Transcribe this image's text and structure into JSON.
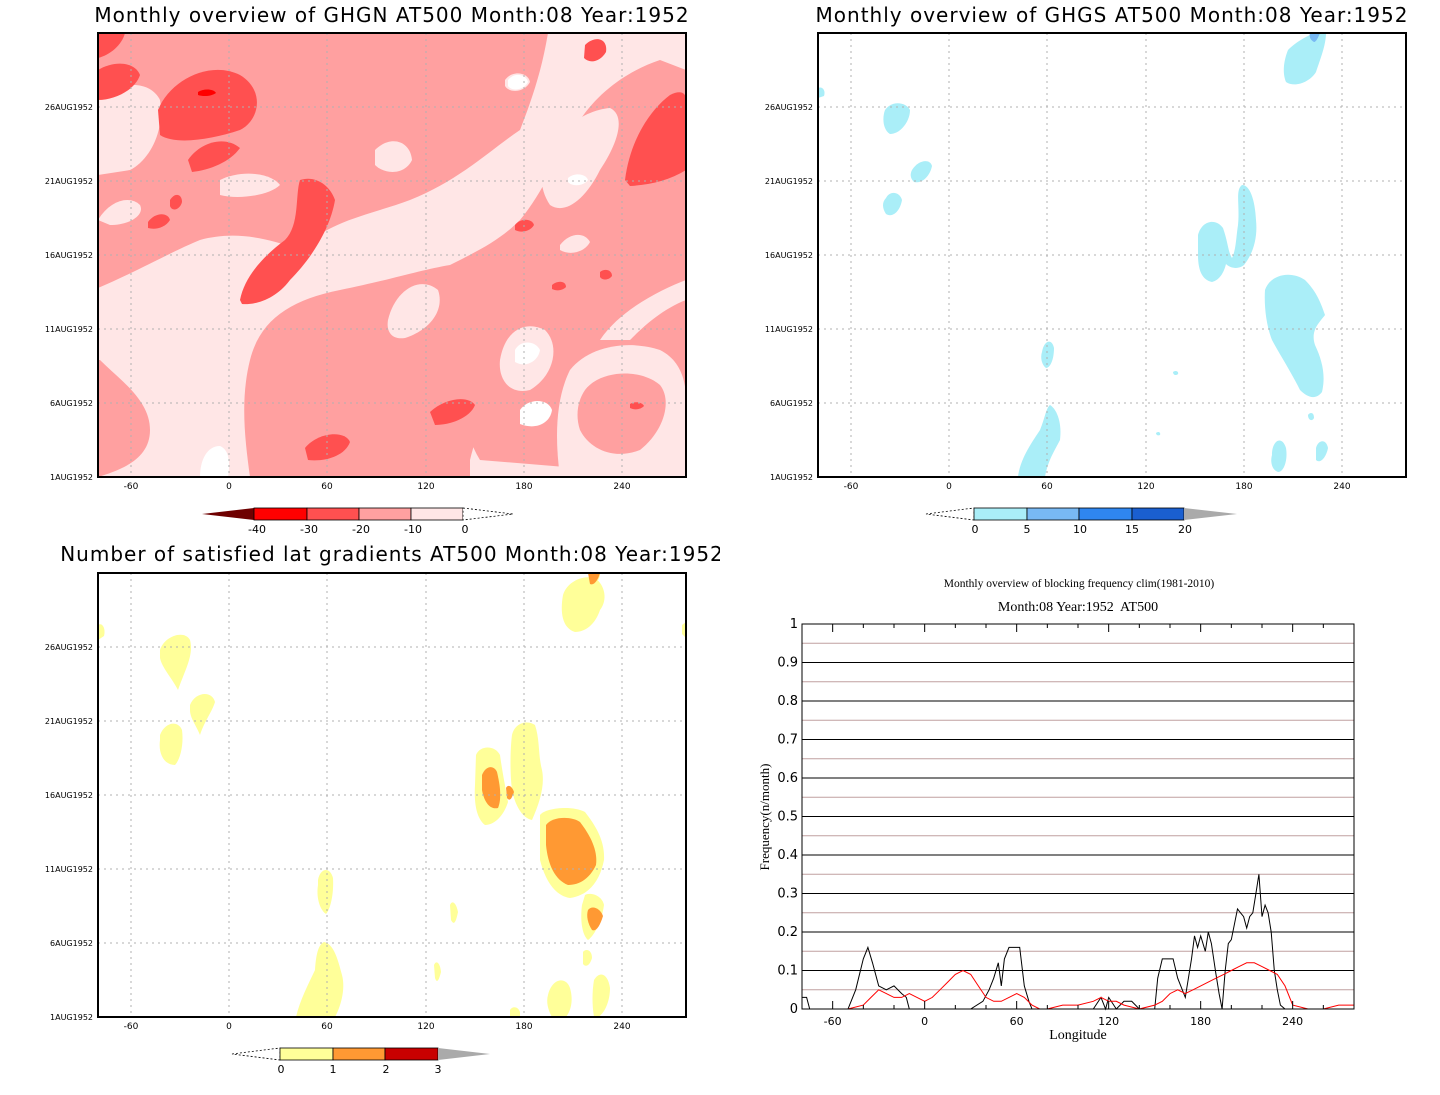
{
  "panels": {
    "ghgn": {
      "title": "Monthly overview of GHGN AT500 Month:08 Year:1952",
      "colorbar_labels": [
        "-40",
        "-30",
        "-20",
        "-10",
        "0"
      ],
      "colorbar_colors": [
        "#ff0000",
        "#ff5050",
        "#ffa0a0",
        "#ffe6e6"
      ],
      "colorbar_below_color": "#6e0000"
    },
    "ghgs": {
      "title": "Monthly overview of GHGS AT500 Month:08 Year:1952",
      "colorbar_labels": [
        "0",
        "5",
        "10",
        "15",
        "20"
      ],
      "colorbar_colors": [
        "#aaeef8",
        "#78b9f4",
        "#2f86f0",
        "#1a5fd0"
      ],
      "colorbar_above_color": "#aaaaaa"
    },
    "lat_gradients": {
      "title": "Number of satisfied lat gradients AT500 Month:08 Year:1952",
      "colorbar_labels": [
        "0",
        "1",
        "2",
        "3"
      ],
      "colorbar_colors": [
        "#ffff99",
        "#ff9933",
        "#c80000"
      ],
      "colorbar_above_color": "#aaaaaa"
    },
    "frequency": {
      "title": "Monthly overview of blocking frequency clim(1981-2010)",
      "subtitle": "Month:08 Year:1952  AT500"
    }
  },
  "hovmoller_axes": {
    "x_ticks": [
      "-60",
      "0",
      "60",
      "120",
      "180",
      "240"
    ],
    "y_ticks": [
      "1AUG1952",
      "6AUG1952",
      "11AUG1952",
      "16AUG1952",
      "21AUG1952",
      "26AUG1952"
    ]
  },
  "chart_data": [
    {
      "type": "heatmap",
      "title": "Monthly overview of GHGN AT500 Month:08 Year:1952",
      "x_ticks": [
        -60,
        0,
        60,
        120,
        180,
        240
      ],
      "xlim": [
        -80,
        280
      ],
      "y_ticks": [
        "1AUG1952",
        "6AUG1952",
        "11AUG1952",
        "16AUG1952",
        "21AUG1952",
        "26AUG1952"
      ],
      "colorbar_levels": [
        -40,
        -30,
        -20,
        -10,
        0
      ],
      "dominant_category": "-20 to -10",
      "grid": true
    },
    {
      "type": "heatmap",
      "title": "Monthly overview of GHGS AT500 Month:08 Year:1952",
      "x_ticks": [
        -60,
        0,
        60,
        120,
        180,
        240
      ],
      "xlim": [
        -80,
        280
      ],
      "y_ticks": [
        "1AUG1952",
        "6AUG1952",
        "11AUG1952",
        "16AUG1952",
        "21AUG1952",
        "26AUG1952"
      ],
      "colorbar_levels": [
        0,
        5,
        10,
        15,
        20
      ],
      "grid": true
    },
    {
      "type": "heatmap",
      "title": "Number of satisfied lat gradients AT500 Month:08 Year:1952",
      "x_ticks": [
        -60,
        0,
        60,
        120,
        180,
        240
      ],
      "xlim": [
        -80,
        280
      ],
      "y_ticks": [
        "1AUG1952",
        "6AUG1952",
        "11AUG1952",
        "16AUG1952",
        "21AUG1952",
        "26AUG1952"
      ],
      "colorbar_levels": [
        0,
        1,
        2,
        3
      ],
      "grid": true
    },
    {
      "type": "line",
      "title": "Monthly overview of blocking frequency clim(1981-2010)",
      "subtitle": "Month:08 Year:1952  AT500",
      "xlabel": "Longitude",
      "ylabel": "Frequency(n/month)",
      "xlim": [
        -80,
        280
      ],
      "ylim": [
        0,
        1
      ],
      "x_ticks": [
        -60,
        0,
        60,
        120,
        180,
        240
      ],
      "y_ticks": [
        "0",
        "0.1",
        "0.2",
        "0.3",
        "0.4",
        "0.5",
        "0.6",
        "0.7",
        "0.8",
        "0.9",
        "1"
      ],
      "grid": true,
      "series": [
        {
          "color": "#000000",
          "x": [
            -80,
            -77,
            -75,
            -50,
            -45,
            -40,
            -37,
            -34,
            -30,
            -25,
            -20,
            -15,
            -12,
            -10,
            -5,
            0,
            5,
            10,
            20,
            30,
            38,
            42,
            45,
            48,
            50,
            52,
            55,
            58,
            62,
            65,
            68,
            70,
            75,
            80,
            90,
            100,
            110,
            115,
            118,
            120,
            125,
            130,
            135,
            140,
            150,
            152,
            155,
            158,
            162,
            165,
            170,
            174,
            176,
            178,
            180,
            183,
            185,
            187,
            190,
            192,
            194,
            196,
            198,
            200,
            202,
            204,
            206,
            208,
            210,
            212,
            214,
            216,
            218,
            220,
            222,
            224,
            226,
            228,
            230,
            232,
            235,
            240,
            280
          ],
          "y": [
            0.03,
            0.03,
            0,
            0,
            0.05,
            0.13,
            0.16,
            0.12,
            0.06,
            0.05,
            0.06,
            0.04,
            0.03,
            0,
            0,
            0,
            0,
            0,
            0,
            0,
            0.02,
            0.05,
            0.08,
            0.12,
            0.06,
            0.13,
            0.16,
            0.16,
            0.16,
            0.06,
            0.02,
            0,
            0,
            0,
            0,
            0,
            0,
            0.03,
            0,
            0.03,
            0,
            0.02,
            0.02,
            0,
            0,
            0.08,
            0.13,
            0.13,
            0.13,
            0.08,
            0.03,
            0.13,
            0.19,
            0.16,
            0.19,
            0.15,
            0.2,
            0.17,
            0.09,
            0.04,
            0,
            0.1,
            0.17,
            0.18,
            0.22,
            0.26,
            0.25,
            0.24,
            0.21,
            0.24,
            0.25,
            0.3,
            0.35,
            0.24,
            0.27,
            0.25,
            0.2,
            0.1,
            0.05,
            0.01,
            0,
            0,
            0
          ]
        },
        {
          "color": "#ff0000",
          "x": [
            -80,
            -50,
            -40,
            -35,
            -30,
            -25,
            -20,
            -15,
            -10,
            -5,
            0,
            5,
            10,
            15,
            20,
            25,
            30,
            35,
            40,
            45,
            50,
            55,
            60,
            65,
            70,
            75,
            80,
            90,
            100,
            110,
            115,
            120,
            125,
            130,
            140,
            150,
            155,
            160,
            165,
            170,
            175,
            180,
            185,
            190,
            195,
            200,
            205,
            210,
            215,
            220,
            225,
            230,
            235,
            240,
            250,
            260,
            270,
            280
          ],
          "y": [
            0,
            0,
            0.01,
            0.03,
            0.05,
            0.04,
            0.03,
            0.03,
            0.04,
            0.03,
            0.02,
            0.03,
            0.05,
            0.07,
            0.09,
            0.1,
            0.09,
            0.06,
            0.03,
            0.02,
            0.02,
            0.03,
            0.04,
            0.03,
            0.01,
            0,
            0,
            0.01,
            0.01,
            0.02,
            0.03,
            0.02,
            0.02,
            0.01,
            0,
            0.01,
            0.02,
            0.04,
            0.05,
            0.04,
            0.05,
            0.06,
            0.07,
            0.08,
            0.09,
            0.1,
            0.11,
            0.12,
            0.12,
            0.11,
            0.1,
            0.09,
            0.06,
            0.01,
            0,
            0,
            0.01,
            0.01
          ]
        },
        {
          "color": "#c0a0a0",
          "role": "reference-lines",
          "y_values": [
            0.05,
            0.15,
            0.25,
            0.35,
            0.45,
            0.55,
            0.65,
            0.75,
            0.85,
            0.95
          ]
        }
      ]
    }
  ]
}
